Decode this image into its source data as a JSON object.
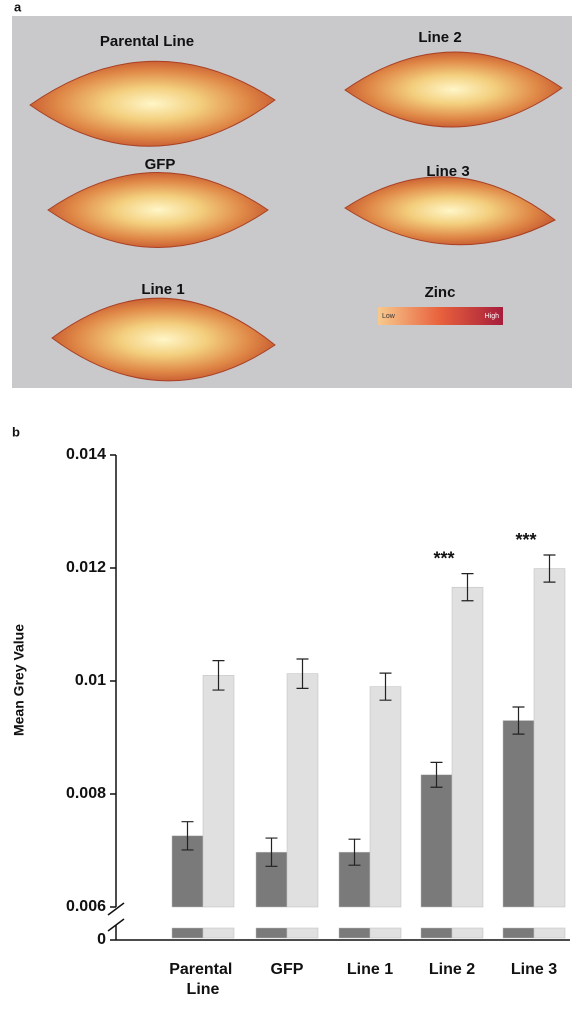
{
  "panel_a": {
    "label": "a",
    "images": [
      {
        "label": "Parental Line"
      },
      {
        "label": "Line 2"
      },
      {
        "label": "GFP"
      },
      {
        "label": "Line 3"
      },
      {
        "label": "Line 1"
      }
    ],
    "legend": {
      "title": "Zinc",
      "low": "Low",
      "high": "High"
    }
  },
  "chart_data": {
    "type": "bar",
    "panel_label": "b",
    "ylabel": "Mean Grey Value",
    "categories": [
      "Parental Line",
      "GFP",
      "Line 1",
      "Line 2",
      "Line 3"
    ],
    "series": [
      {
        "color": "#7a7a7a",
        "values": [
          0.00726,
          0.00697,
          0.00697,
          0.00834,
          0.0093
        ],
        "errors": [
          0.00025,
          0.00025,
          0.00023,
          0.00022,
          0.00024
        ]
      },
      {
        "color": "#e0e0e0",
        "values": [
          0.0101,
          0.01013,
          0.0099,
          0.01166,
          0.01199
        ],
        "errors": [
          0.00026,
          0.00026,
          0.00024,
          0.00024,
          0.00024
        ]
      }
    ],
    "ylim": [
      0.006,
      0.014
    ],
    "yticks": [
      0,
      0.006,
      0.008,
      0.01,
      0.012,
      0.014
    ],
    "axis_break": true,
    "annotations": [
      {
        "text": "***",
        "x": "Line 2"
      },
      {
        "text": "***",
        "x": "Line 3"
      }
    ]
  }
}
